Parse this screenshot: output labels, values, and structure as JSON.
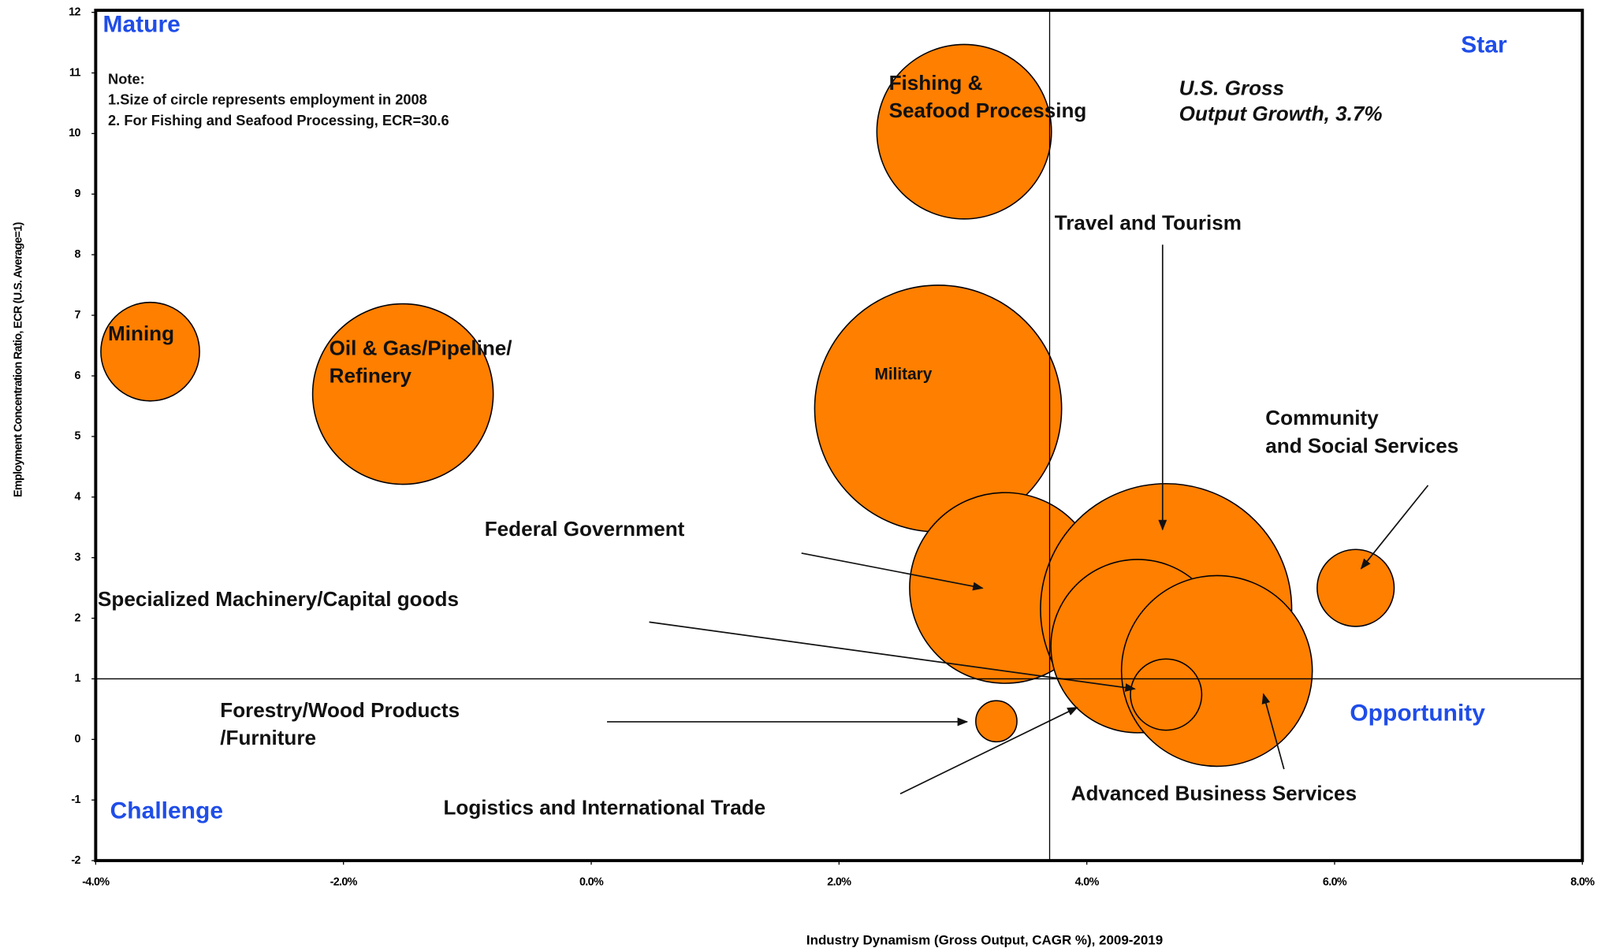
{
  "chart_data": {
    "type": "bubble",
    "x_label": "Industry Dynamism (Gross Output, CAGR %), 2009-2019",
    "y_label": "Employment Concentration Ratio, ECR (U.S. Average=1)",
    "xlim": [
      -4,
      8
    ],
    "xticks": [
      {
        "value": -4,
        "label": "-4.0%"
      },
      {
        "value": -2,
        "label": "-2.0%"
      },
      {
        "value": 0,
        "label": "0.0%"
      },
      {
        "value": 2,
        "label": "2.0%"
      },
      {
        "value": 4,
        "label": "4.0%"
      },
      {
        "value": 6,
        "label": "6.0%"
      },
      {
        "value": 8,
        "label": "8.0%"
      }
    ],
    "ylim": [
      -2,
      12
    ],
    "yticks": [
      -2,
      -1,
      0,
      1,
      2,
      3,
      4,
      5,
      6,
      7,
      8,
      9,
      10,
      11,
      12
    ],
    "reference_x": 3.7,
    "reference_y": 1,
    "reference_label": [
      "U.S. Gross",
      "Output Growth, 3.7%"
    ],
    "quadrant_labels": [
      "Mature",
      "Star",
      "Opportunity",
      "Challenge"
    ],
    "note": [
      "Note:",
      "1.Size of circle represents employment in 2008",
      "2. For Fishing and Seafood Processing, ECR=30.6"
    ],
    "color": "#ff7f00",
    "series": [
      {
        "label": [
          "Military"
        ],
        "x": 2.8,
        "y": 5.46,
        "size": 144
      },
      {
        "label": [
          "Fishing &",
          "Seafood Processing"
        ],
        "x": 3.01,
        "y": 10.03,
        "size": 72
      },
      {
        "label": [
          "Mining"
        ],
        "x": -3.56,
        "y": 6.4,
        "size": 23
      },
      {
        "label": [
          "Oil & Gas/Pipeline/",
          "Refinery"
        ],
        "x": -1.52,
        "y": 5.7,
        "size": 77
      },
      {
        "label": [
          "Federal Government"
        ],
        "x": 3.34,
        "y": 2.5,
        "size": 86
      },
      {
        "label": [
          "Travel and Tourism"
        ],
        "x": 4.64,
        "y": 2.15,
        "size": 149
      },
      {
        "label": [
          "Logistics and International Trade"
        ],
        "x": 4.41,
        "y": 1.54,
        "size": 71
      },
      {
        "label": [
          "Advanced Business Services"
        ],
        "x": 5.05,
        "y": 1.13,
        "size": 86
      },
      {
        "label": [
          "Specialized Machinery/Capital goods"
        ],
        "x": 4.64,
        "y": 0.74,
        "size": 12
      },
      {
        "label": [
          "Community",
          "and Social Services"
        ],
        "x": 6.17,
        "y": 2.5,
        "size": 14
      },
      {
        "label": [
          "Forestry/Wood Products",
          "/Furniture"
        ],
        "x": 3.27,
        "y": 0.3,
        "size": 4
      }
    ]
  }
}
